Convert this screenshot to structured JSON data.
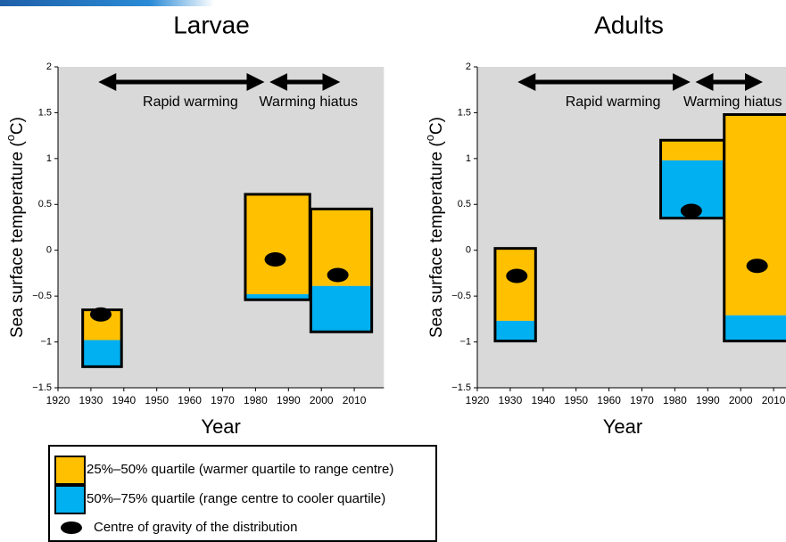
{
  "legend": {
    "items": [
      {
        "label": "25%–50% quartile (warmer quartile to range centre)",
        "color": "#FFC000"
      },
      {
        "label": "50%–75% quartile (range centre to cooler quartile)",
        "color": "#00B0F0"
      },
      {
        "label": "Centre of gravity of the distribution",
        "color": "#000000"
      }
    ]
  },
  "chart_data": [
    {
      "type": "floating-box",
      "title": "Larvae",
      "xlabel": "Year",
      "ylabel": {
        "before": "Sea surface temperature (",
        "superscript": "o",
        "after": "C)"
      },
      "xlim": [
        1920,
        2019
      ],
      "xticks": [
        1920,
        1930,
        1940,
        1950,
        1960,
        1970,
        1980,
        1990,
        2000,
        2010
      ],
      "ylim": [
        -1.5,
        2
      ],
      "yticks": [
        {
          "value": -1.5,
          "label": "−1.5"
        },
        {
          "value": -1,
          "label": "−1"
        },
        {
          "value": -0.5,
          "label": "−0.5"
        },
        0,
        0.5,
        1,
        1.5,
        2
      ],
      "periods": [
        {
          "label": "Rapid warming",
          "start": 1932,
          "end": 1983
        },
        {
          "label": "Warming hiatus",
          "start": 1984,
          "end": 2006
        }
      ],
      "boxes": [
        {
          "x_start": 1927.5,
          "x_end": 1939.3,
          "top": -0.65,
          "middle": -0.98,
          "bottom": -1.27,
          "centre_x": 1933,
          "centre_y": -0.7
        },
        {
          "x_start": 1976.9,
          "x_end": 1996.5,
          "top": 0.61,
          "middle": -0.48,
          "bottom": -0.54,
          "centre_x": 1986,
          "centre_y": -0.1
        },
        {
          "x_start": 1996.8,
          "x_end": 2015.3,
          "top": 0.45,
          "middle": -0.39,
          "bottom": -0.89,
          "centre_x": 2005,
          "centre_y": -0.27
        }
      ]
    },
    {
      "type": "floating-box",
      "title": "Adults",
      "xlabel": "Year",
      "ylabel": {
        "before": "Sea surface temperature (",
        "superscript": "o",
        "after": "C)"
      },
      "xlim": [
        1920,
        2014
      ],
      "xticks": [
        1920,
        1930,
        1940,
        1950,
        1960,
        1970,
        1980,
        1990,
        2000,
        2010
      ],
      "ylim": [
        -1.5,
        2
      ],
      "yticks": [
        {
          "value": -1.5,
          "label": "−1.5"
        },
        {
          "value": -1,
          "label": "−1"
        },
        {
          "value": -0.5,
          "label": "−0.5"
        },
        0,
        0.5,
        1,
        1.5,
        2
      ],
      "periods": [
        {
          "label": "Rapid warming",
          "start": 1932,
          "end": 1985
        },
        {
          "label": "Warming hiatus",
          "start": 1986,
          "end": 2007
        }
      ],
      "boxes": [
        {
          "x_start": 1925.4,
          "x_end": 1937.7,
          "top": 0.02,
          "middle": -0.77,
          "bottom": -0.99,
          "centre_x": 1932,
          "centre_y": -0.28
        },
        {
          "x_start": 1975.7,
          "x_end": 1995,
          "top": 1.2,
          "middle": 0.98,
          "bottom": 0.35,
          "centre_x": 1985,
          "centre_y": 0.43
        },
        {
          "x_start": 1995,
          "x_end": 2016,
          "top": 1.48,
          "middle": -0.71,
          "bottom": -0.99,
          "centre_x": 2005,
          "centre_y": -0.17
        }
      ]
    }
  ]
}
